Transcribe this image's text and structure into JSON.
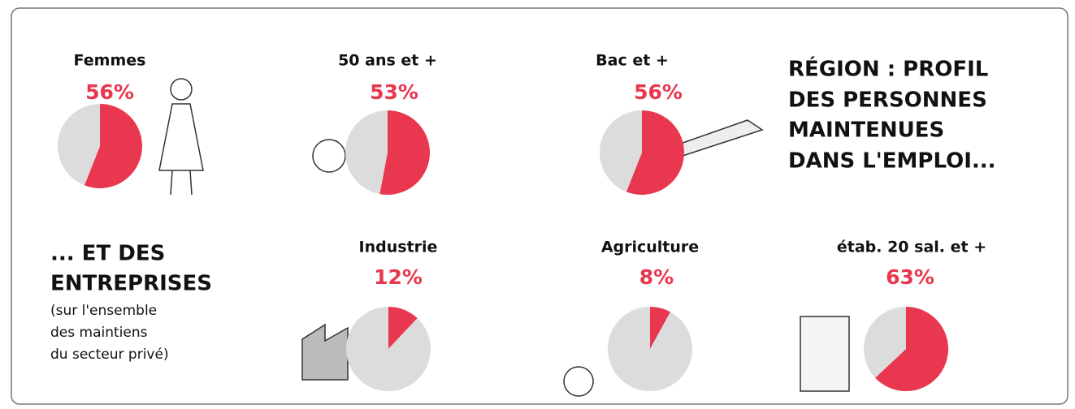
{
  "heading": [
    "RÉGION : PROFIL",
    "DES PERSONNES",
    "MAINTENUES",
    "DANS L'EMPLOI..."
  ],
  "subheading": [
    "... ET DES",
    "ENTREPRISES"
  ],
  "note": [
    "(sur l'ensemble",
    "des maintiens",
    "du secteur privé)"
  ],
  "chart_data": [
    {
      "type": "pie",
      "title": "Femmes",
      "values": [
        56,
        44
      ],
      "value_labels": [
        "56%",
        null
      ],
      "colors": [
        "#e8374f",
        "#dcdcdc"
      ]
    },
    {
      "type": "pie",
      "title": "50 ans et +",
      "values": [
        53,
        47
      ],
      "value_labels": [
        "53%",
        null
      ],
      "colors": [
        "#e8374f",
        "#dcdcdc"
      ]
    },
    {
      "type": "pie",
      "title": "Bac et +",
      "values": [
        56,
        44
      ],
      "value_labels": [
        "56%",
        null
      ],
      "colors": [
        "#e8374f",
        "#dcdcdc"
      ]
    },
    {
      "type": "pie",
      "title": "Industrie",
      "values": [
        12,
        88
      ],
      "value_labels": [
        "12%",
        null
      ],
      "colors": [
        "#e8374f",
        "#dcdcdc"
      ]
    },
    {
      "type": "pie",
      "title": "Agriculture",
      "values": [
        8,
        92
      ],
      "value_labels": [
        "8%",
        null
      ],
      "colors": [
        "#e8374f",
        "#dcdcdc"
      ]
    },
    {
      "type": "pie",
      "title": "étab. 20 sal. et +",
      "values": [
        63,
        37
      ],
      "value_labels": [
        "63%",
        null
      ],
      "colors": [
        "#e8374f",
        "#dcdcdc"
      ]
    }
  ]
}
